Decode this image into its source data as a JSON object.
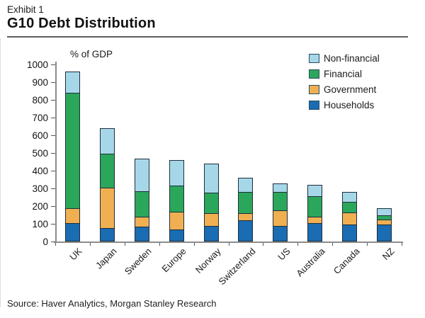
{
  "header": {
    "exhibit": "Exhibit 1",
    "title": "G10 Debt Distribution"
  },
  "chart_data": {
    "type": "bar",
    "stacked": true,
    "title": "G10 Debt Distribution",
    "unit_label": "% of GDP",
    "ylabel": "% of GDP",
    "xlabel": "",
    "ylim": [
      0,
      1000
    ],
    "ytick_step": 100,
    "grid": false,
    "legend_position": "top-right",
    "categories": [
      "UK",
      "Japan",
      "Sweden",
      "Europe",
      "Norway",
      "Switzerland",
      "US",
      "Australia",
      "Canada",
      "NZ"
    ],
    "series": [
      {
        "name": "Households",
        "color": "#1a6cb3",
        "values": [
          105,
          75,
          85,
          70,
          90,
          120,
          90,
          105,
          95,
          95
        ]
      },
      {
        "name": "Government",
        "color": "#f0b052",
        "values": [
          85,
          230,
          55,
          100,
          70,
          40,
          85,
          35,
          70,
          30
        ]
      },
      {
        "name": "Financial",
        "color": "#2ba75b",
        "values": [
          650,
          190,
          145,
          145,
          115,
          120,
          105,
          115,
          60,
          25
        ]
      },
      {
        "name": "Non-financial",
        "color": "#a6d7e8",
        "values": [
          120,
          145,
          185,
          145,
          165,
          80,
          50,
          65,
          55,
          40
        ]
      }
    ],
    "totals": [
      960,
      640,
      470,
      460,
      440,
      360,
      330,
      320,
      280,
      190
    ],
    "legend_order": [
      "Non-financial",
      "Financial",
      "Government",
      "Households"
    ]
  },
  "footer": {
    "source": "Source: Haver Analytics, Morgan Stanley Research"
  }
}
